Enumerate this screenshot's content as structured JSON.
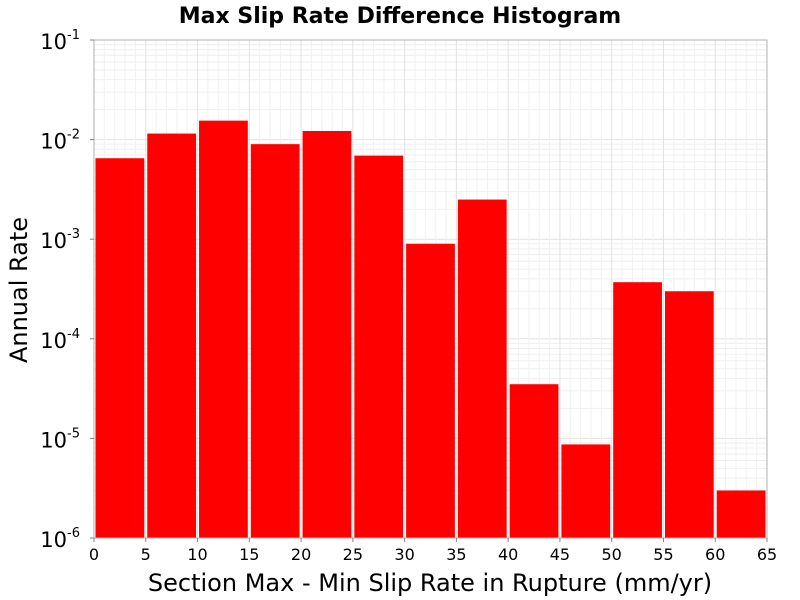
{
  "chart_data": {
    "type": "bar",
    "title": "Max Slip Rate Difference Histogram",
    "xlabel": "Section Max - Min Slip Rate in Rupture (mm/yr)",
    "ylabel": "Annual Rate",
    "y_scale": "log",
    "ylim": [
      1e-06,
      0.1
    ],
    "xlim": [
      0,
      65
    ],
    "x_ticks": [
      "0",
      "5",
      "10",
      "15",
      "20",
      "25",
      "30",
      "35",
      "40",
      "45",
      "50",
      "55",
      "60",
      "65"
    ],
    "y_ticks": [
      {
        "base": "10",
        "exp": "-6",
        "value": 1e-06
      },
      {
        "base": "10",
        "exp": "-5",
        "value": 1e-05
      },
      {
        "base": "10",
        "exp": "-4",
        "value": 0.0001
      },
      {
        "base": "10",
        "exp": "-3",
        "value": 0.001
      },
      {
        "base": "10",
        "exp": "-2",
        "value": 0.01
      },
      {
        "base": "10",
        "exp": "-1",
        "value": 0.1
      }
    ],
    "grid": true,
    "bar_color": "#ff0000",
    "bars": [
      {
        "x0": 0,
        "x1": 5,
        "value": 0.0065
      },
      {
        "x0": 5,
        "x1": 10,
        "value": 0.0115
      },
      {
        "x0": 10,
        "x1": 15,
        "value": 0.0155
      },
      {
        "x0": 15,
        "x1": 20,
        "value": 0.009
      },
      {
        "x0": 20,
        "x1": 25,
        "value": 0.0122
      },
      {
        "x0": 25,
        "x1": 30,
        "value": 0.0069
      },
      {
        "x0": 30,
        "x1": 35,
        "value": 0.0009
      },
      {
        "x0": 35,
        "x1": 40,
        "value": 0.0025
      },
      {
        "x0": 40,
        "x1": 45,
        "value": 3.5e-05
      },
      {
        "x0": 45,
        "x1": 50,
        "value": 8.7e-06
      },
      {
        "x0": 50,
        "x1": 55,
        "value": 0.00037
      },
      {
        "x0": 55,
        "x1": 60,
        "value": 0.0003
      },
      {
        "x0": 60,
        "x1": 65,
        "value": 3e-06
      }
    ]
  }
}
